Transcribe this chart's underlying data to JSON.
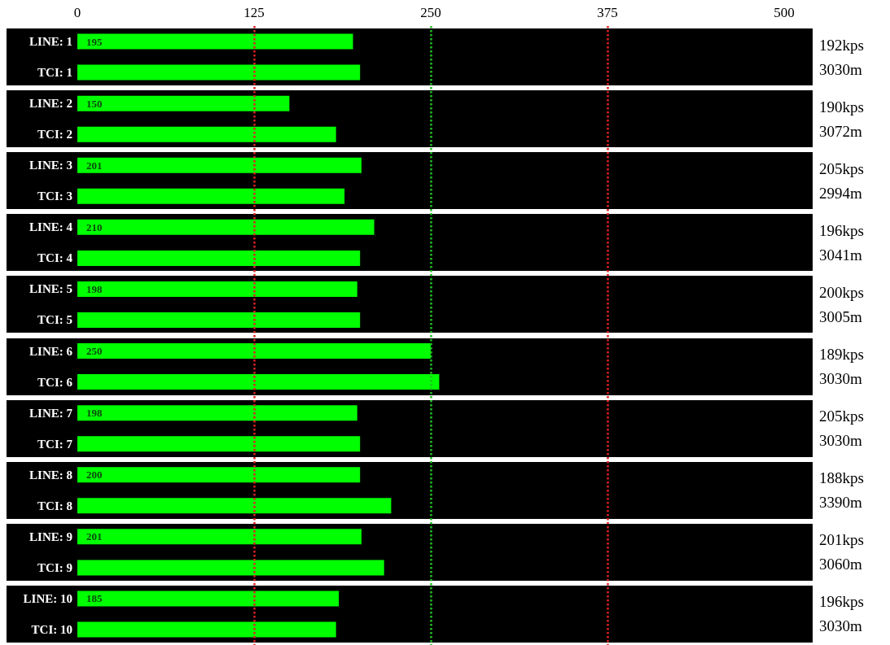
{
  "chart_data": {
    "type": "bar",
    "orientation": "horizontal",
    "categories": [
      "LINE: 1",
      "TCI: 1",
      "LINE: 2",
      "TCI: 2",
      "LINE: 3",
      "TCI: 3",
      "LINE: 4",
      "TCI: 4",
      "LINE: 5",
      "TCI: 5",
      "LINE: 6",
      "TCI: 6",
      "LINE: 7",
      "TCI: 7",
      "LINE: 8",
      "TCI: 8",
      "LINE: 9",
      "TCI: 9",
      "LINE: 10",
      "TCI: 10"
    ],
    "values": [
      195,
      200,
      150,
      183,
      201,
      189,
      210,
      200,
      198,
      200,
      250,
      256,
      198,
      200,
      200,
      222,
      201,
      217,
      185,
      183
    ],
    "value_labels": [
      "195",
      null,
      "150",
      null,
      "201",
      null,
      "210",
      null,
      "198",
      null,
      "250",
      null,
      "198",
      null,
      "200",
      null,
      "201",
      null,
      "185",
      null
    ],
    "color": "#00ff00",
    "xlim": [
      0,
      500
    ],
    "xticks": [
      0,
      125,
      250,
      375,
      500
    ],
    "grid": false,
    "ref_lines": [
      {
        "axis": "x",
        "value": 125,
        "color": "#e02020",
        "line_style": "dotted"
      },
      {
        "axis": "x",
        "value": 250,
        "color": "#20c020",
        "line_style": "dotted"
      },
      {
        "axis": "x",
        "value": 375,
        "color": "#e02020",
        "line_style": "dotted"
      }
    ],
    "annotations": [
      "192kps",
      "3030m",
      "190kps",
      "3072m",
      "205kps",
      "2994m",
      "196kps",
      "3041m",
      "200kps",
      "3005m",
      "189kps",
      "3030m",
      "205kps",
      "3030m",
      "188kps",
      "3390m",
      "201kps",
      "3060m",
      "196kps",
      "3030m"
    ]
  }
}
